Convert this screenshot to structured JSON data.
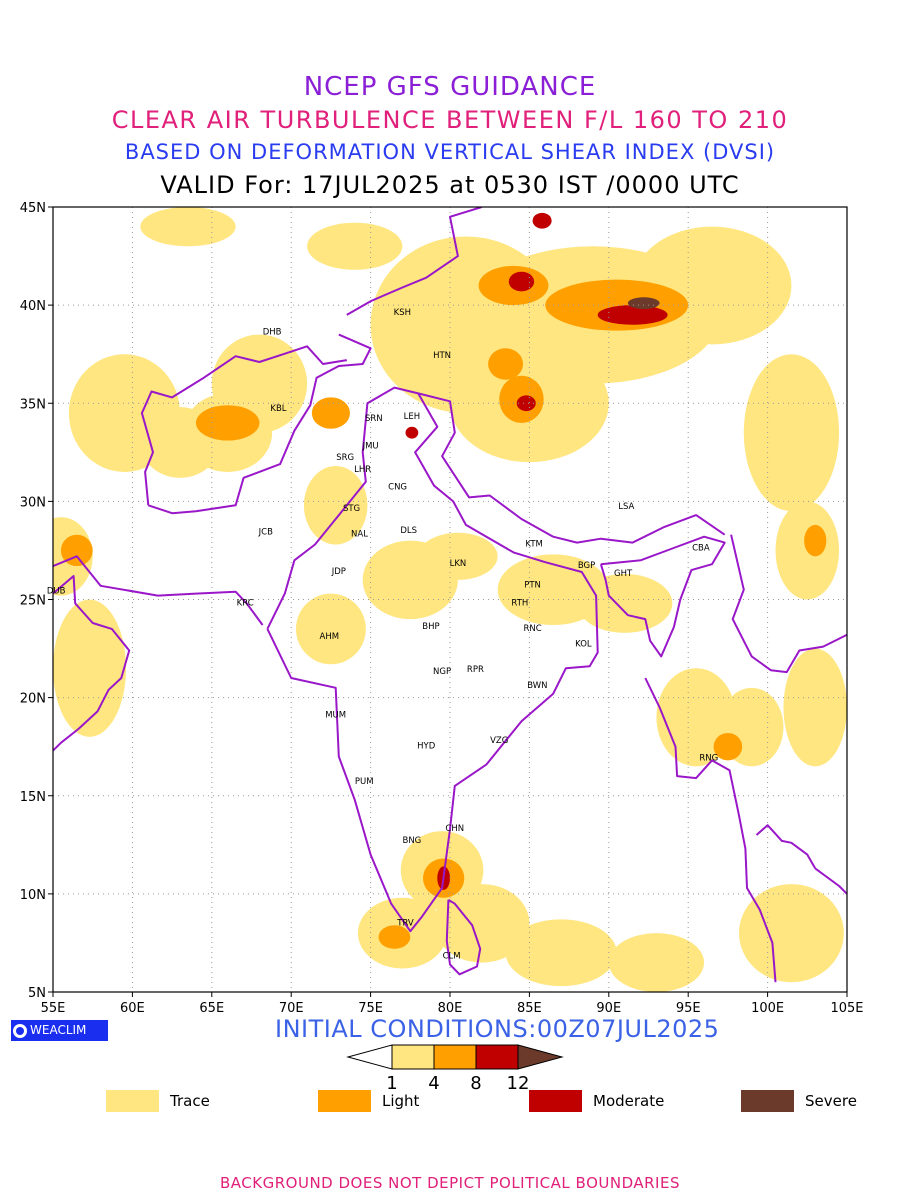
{
  "titles": {
    "line1": "NCEP GFS GUIDANCE",
    "line2": "CLEAR AIR TURBULENCE BETWEEN F/L 160 TO 210",
    "line3": "BASED ON DEFORMATION VERTICAL SHEAR INDEX (DVSI)",
    "line4": "VALID For: 17JUL2025 at 0530 IST /0000 UTC"
  },
  "map": {
    "lon_range": [
      55,
      105
    ],
    "lat_range": [
      5,
      45
    ],
    "lon_ticks": [
      "55E",
      "60E",
      "65E",
      "70E",
      "75E",
      "80E",
      "85E",
      "90E",
      "95E",
      "100E",
      "105E"
    ],
    "lat_ticks": [
      "45N",
      "40N",
      "35N",
      "30N",
      "25N",
      "20N",
      "15N",
      "10N",
      "5N"
    ],
    "grid": "dotted",
    "boundary_color": "#9a17c9"
  },
  "stations": [
    {
      "code": "KSH",
      "lon": 77.0,
      "lat": 39.5
    },
    {
      "code": "DHB",
      "lon": 68.8,
      "lat": 38.5
    },
    {
      "code": "HTN",
      "lon": 79.5,
      "lat": 37.3
    },
    {
      "code": "KBL",
      "lon": 69.2,
      "lat": 34.6
    },
    {
      "code": "SRN",
      "lon": 75.2,
      "lat": 34.1
    },
    {
      "code": "LEH",
      "lon": 77.6,
      "lat": 34.2
    },
    {
      "code": "JMU",
      "lon": 75.0,
      "lat": 32.7
    },
    {
      "code": "SRG",
      "lon": 73.4,
      "lat": 32.1
    },
    {
      "code": "LHR",
      "lon": 74.5,
      "lat": 31.5
    },
    {
      "code": "CNG",
      "lon": 76.7,
      "lat": 30.6
    },
    {
      "code": "STG",
      "lon": 73.8,
      "lat": 29.5
    },
    {
      "code": "LSA",
      "lon": 91.1,
      "lat": 29.6
    },
    {
      "code": "DLS",
      "lon": 77.4,
      "lat": 28.4
    },
    {
      "code": "JCB",
      "lon": 68.4,
      "lat": 28.3
    },
    {
      "code": "NAL",
      "lon": 74.3,
      "lat": 28.2
    },
    {
      "code": "KTM",
      "lon": 85.3,
      "lat": 27.7
    },
    {
      "code": "BGP",
      "lon": 88.6,
      "lat": 26.6
    },
    {
      "code": "CBA",
      "lon": 95.8,
      "lat": 27.5
    },
    {
      "code": "GHT",
      "lon": 90.9,
      "lat": 26.2
    },
    {
      "code": "JDP",
      "lon": 73.0,
      "lat": 26.3
    },
    {
      "code": "LKN",
      "lon": 80.5,
      "lat": 26.7
    },
    {
      "code": "PTN",
      "lon": 85.2,
      "lat": 25.6
    },
    {
      "code": "DUB",
      "lon": 55.2,
      "lat": 25.3
    },
    {
      "code": "KRC",
      "lon": 67.1,
      "lat": 24.7
    },
    {
      "code": "RTH",
      "lon": 84.4,
      "lat": 24.7
    },
    {
      "code": "BHP",
      "lon": 78.8,
      "lat": 23.5
    },
    {
      "code": "AHM",
      "lon": 72.4,
      "lat": 23.0
    },
    {
      "code": "RNC",
      "lon": 85.2,
      "lat": 23.4
    },
    {
      "code": "KOL",
      "lon": 88.4,
      "lat": 22.6
    },
    {
      "code": "NGP",
      "lon": 79.5,
      "lat": 21.2
    },
    {
      "code": "RPR",
      "lon": 81.6,
      "lat": 21.3
    },
    {
      "code": "BWN",
      "lon": 85.5,
      "lat": 20.5
    },
    {
      "code": "MUM",
      "lon": 72.8,
      "lat": 19.0
    },
    {
      "code": "HYD",
      "lon": 78.5,
      "lat": 17.4
    },
    {
      "code": "VZG",
      "lon": 83.1,
      "lat": 17.7
    },
    {
      "code": "RNG",
      "lon": 96.3,
      "lat": 16.8
    },
    {
      "code": "PUM",
      "lon": 74.6,
      "lat": 15.6
    },
    {
      "code": "CHN",
      "lon": 80.3,
      "lat": 13.2
    },
    {
      "code": "BNG",
      "lon": 77.6,
      "lat": 12.6
    },
    {
      "code": "TRV",
      "lon": 77.2,
      "lat": 8.4
    },
    {
      "code": "CLM",
      "lon": 80.1,
      "lat": 6.7
    }
  ],
  "cat_areas": [
    {
      "level": "Trace",
      "lon": 59.5,
      "lat": 34.5,
      "rx": 3.5,
      "ry": 3
    },
    {
      "level": "Trace",
      "lon": 68,
      "lat": 36,
      "rx": 3,
      "ry": 2.5
    },
    {
      "level": "Trace",
      "lon": 66,
      "lat": 33.5,
      "rx": 2.8,
      "ry": 2
    },
    {
      "level": "Trace",
      "lon": 63,
      "lat": 33,
      "rx": 2.5,
      "ry": 1.8
    },
    {
      "level": "Trace",
      "lon": 55.5,
      "lat": 27.2,
      "rx": 2,
      "ry": 2
    },
    {
      "level": "Trace",
      "lon": 57.3,
      "lat": 21.5,
      "rx": 2.3,
      "ry": 3.5
    },
    {
      "level": "Trace",
      "lon": 72.8,
      "lat": 29.8,
      "rx": 2,
      "ry": 2
    },
    {
      "level": "Trace",
      "lon": 72.5,
      "lat": 23.5,
      "rx": 2.2,
      "ry": 1.8
    },
    {
      "level": "Trace",
      "lon": 77.5,
      "lat": 26,
      "rx": 3,
      "ry": 2
    },
    {
      "level": "Trace",
      "lon": 80.5,
      "lat": 27.2,
      "rx": 2.5,
      "ry": 1.2
    },
    {
      "level": "Trace",
      "lon": 86.5,
      "lat": 25.5,
      "rx": 3.5,
      "ry": 1.8
    },
    {
      "level": "Trace",
      "lon": 91,
      "lat": 24.8,
      "rx": 3,
      "ry": 1.5
    },
    {
      "level": "Trace",
      "lon": 81,
      "lat": 39,
      "rx": 6,
      "ry": 4.5
    },
    {
      "level": "Trace",
      "lon": 89,
      "lat": 39.5,
      "rx": 8,
      "ry": 3.5
    },
    {
      "level": "Trace",
      "lon": 96.5,
      "lat": 41,
      "rx": 5,
      "ry": 3
    },
    {
      "level": "Trace",
      "lon": 85,
      "lat": 35,
      "rx": 5,
      "ry": 3
    },
    {
      "level": "Trace",
      "lon": 101.5,
      "lat": 33.5,
      "rx": 3,
      "ry": 4
    },
    {
      "level": "Trace",
      "lon": 102.5,
      "lat": 27.5,
      "rx": 2,
      "ry": 2.5
    },
    {
      "level": "Trace",
      "lon": 95.5,
      "lat": 19,
      "rx": 2.5,
      "ry": 2.5
    },
    {
      "level": "Trace",
      "lon": 99,
      "lat": 18.5,
      "rx": 2,
      "ry": 2
    },
    {
      "level": "Trace",
      "lon": 103,
      "lat": 19.5,
      "rx": 2,
      "ry": 3
    },
    {
      "level": "Trace",
      "lon": 79.5,
      "lat": 11.2,
      "rx": 2.6,
      "ry": 2
    },
    {
      "level": "Trace",
      "lon": 77,
      "lat": 8,
      "rx": 2.8,
      "ry": 1.8
    },
    {
      "level": "Trace",
      "lon": 82,
      "lat": 8.5,
      "rx": 3,
      "ry": 2
    },
    {
      "level": "Trace",
      "lon": 87,
      "lat": 7,
      "rx": 3.5,
      "ry": 1.7
    },
    {
      "level": "Trace",
      "lon": 93,
      "lat": 6.5,
      "rx": 3,
      "ry": 1.5
    },
    {
      "level": "Trace",
      "lon": 101.5,
      "lat": 8,
      "rx": 3.3,
      "ry": 2.5
    },
    {
      "level": "Trace",
      "lon": 63.5,
      "lat": 44,
      "rx": 3,
      "ry": 1
    },
    {
      "level": "Trace",
      "lon": 74,
      "lat": 43,
      "rx": 3,
      "ry": 1.2
    },
    {
      "level": "Light",
      "lon": 66,
      "lat": 34,
      "rx": 2,
      "ry": 0.9
    },
    {
      "level": "Light",
      "lon": 72.5,
      "lat": 34.5,
      "rx": 1.2,
      "ry": 0.8
    },
    {
      "level": "Light",
      "lon": 56.5,
      "lat": 27.5,
      "rx": 1,
      "ry": 0.8
    },
    {
      "level": "Light",
      "lon": 84,
      "lat": 41,
      "rx": 2.2,
      "ry": 1
    },
    {
      "level": "Light",
      "lon": 90.5,
      "lat": 40,
      "rx": 4.5,
      "ry": 1.3
    },
    {
      "level": "Light",
      "lon": 84.5,
      "lat": 35.2,
      "rx": 1.4,
      "ry": 1.2
    },
    {
      "level": "Light",
      "lon": 83.5,
      "lat": 37,
      "rx": 1.1,
      "ry": 0.8
    },
    {
      "level": "Light",
      "lon": 79.6,
      "lat": 10.8,
      "rx": 1.3,
      "ry": 1
    },
    {
      "level": "Light",
      "lon": 103,
      "lat": 28,
      "rx": 0.7,
      "ry": 0.8
    },
    {
      "level": "Light",
      "lon": 97.5,
      "lat": 17.5,
      "rx": 0.9,
      "ry": 0.7
    },
    {
      "level": "Light",
      "lon": 76.5,
      "lat": 7.8,
      "rx": 1,
      "ry": 0.6
    },
    {
      "level": "Moderate",
      "lon": 84.5,
      "lat": 41.2,
      "rx": 0.8,
      "ry": 0.5
    },
    {
      "level": "Moderate",
      "lon": 91.5,
      "lat": 39.5,
      "rx": 2.2,
      "ry": 0.5
    },
    {
      "level": "Moderate",
      "lon": 84.8,
      "lat": 35,
      "rx": 0.6,
      "ry": 0.4
    },
    {
      "level": "Moderate",
      "lon": 85.8,
      "lat": 44.3,
      "rx": 0.6,
      "ry": 0.4
    },
    {
      "level": "Moderate",
      "lon": 77.6,
      "lat": 33.5,
      "rx": 0.4,
      "ry": 0.3
    },
    {
      "level": "Moderate",
      "lon": 79.6,
      "lat": 10.8,
      "rx": 0.4,
      "ry": 0.6
    },
    {
      "level": "Severe",
      "lon": 92.2,
      "lat": 40.1,
      "rx": 1,
      "ry": 0.3
    }
  ],
  "legend": {
    "colors": {
      "Trace": "#ffe680",
      "Light": "#ffa000",
      "Moderate": "#c00000",
      "Severe": "#6b3a2a"
    },
    "scale_labels": [
      "1",
      "4",
      "8",
      "12"
    ],
    "categories": [
      "Trace",
      "Light",
      "Moderate",
      "Severe"
    ]
  },
  "badge": "WEACLIM",
  "initial_conditions": "INITIAL CONDITIONS:00Z07JUL2025",
  "footer": "BACKGROUND DOES NOT DEPICT POLITICAL BOUNDARIES"
}
